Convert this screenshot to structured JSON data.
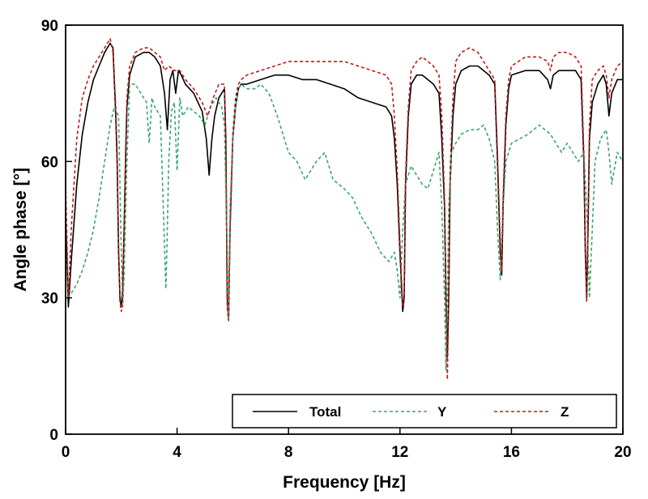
{
  "chart_data": {
    "type": "line",
    "title": "",
    "xlabel": "Frequency [Hz]",
    "ylabel": "Angle phase [°]",
    "xlim": [
      0,
      20
    ],
    "ylim": [
      0,
      90
    ],
    "xticks": [
      0,
      4,
      8,
      12,
      16,
      20
    ],
    "yticks": [
      0,
      30,
      60,
      90
    ],
    "grid": false,
    "legend_position": "bottom-right",
    "series": [
      {
        "name": "Total",
        "color": "#000000",
        "style": "solid",
        "x": [
          0.0,
          0.1,
          0.2,
          0.4,
          0.6,
          0.8,
          1.0,
          1.2,
          1.4,
          1.6,
          1.7,
          1.8,
          1.85,
          1.9,
          1.95,
          2.0,
          2.05,
          2.1,
          2.15,
          2.2,
          2.3,
          2.5,
          2.8,
          3.0,
          3.2,
          3.4,
          3.55,
          3.65,
          3.75,
          3.85,
          3.95,
          4.05,
          4.15,
          4.3,
          4.6,
          4.9,
          5.05,
          5.15,
          5.25,
          5.35,
          5.5,
          5.7,
          5.75,
          5.8,
          5.85,
          5.9,
          6.0,
          6.1,
          6.2,
          6.3,
          6.5,
          7.0,
          7.5,
          8.0,
          8.5,
          9.0,
          9.5,
          10.0,
          10.5,
          11.0,
          11.5,
          11.7,
          11.8,
          11.9,
          12.0,
          12.1,
          12.15,
          12.2,
          12.3,
          12.4,
          12.6,
          12.8,
          13.0,
          13.2,
          13.4,
          13.5,
          13.6,
          13.65,
          13.7,
          13.75,
          13.8,
          13.9,
          14.0,
          14.2,
          14.5,
          14.8,
          15.0,
          15.2,
          15.4,
          15.5,
          15.6,
          15.65,
          15.7,
          15.8,
          15.9,
          16.0,
          16.5,
          17.0,
          17.3,
          17.4,
          17.5,
          17.7,
          18.0,
          18.3,
          18.5,
          18.6,
          18.65,
          18.7,
          18.75,
          18.8,
          18.9,
          19.1,
          19.3,
          19.4,
          19.5,
          19.6,
          19.8,
          20.0
        ],
        "values": [
          48,
          28,
          38,
          55,
          66,
          73,
          78,
          81,
          84,
          86,
          85,
          70,
          60,
          40,
          30,
          28,
          32,
          45,
          60,
          72,
          79,
          83,
          84,
          84,
          83,
          81,
          75,
          67,
          78,
          80,
          75,
          80,
          79,
          77,
          75,
          71,
          65,
          57,
          65,
          70,
          74,
          76,
          65,
          30,
          25,
          45,
          65,
          72,
          76,
          77,
          77,
          78,
          79,
          79,
          78,
          78,
          77,
          76,
          74,
          73,
          72,
          70,
          65,
          55,
          40,
          27,
          30,
          55,
          70,
          77,
          79,
          79,
          78,
          77,
          75,
          65,
          50,
          30,
          17,
          30,
          55,
          70,
          77,
          80,
          81,
          81,
          80,
          79,
          77,
          60,
          40,
          35,
          50,
          68,
          76,
          79,
          80,
          80,
          78,
          76,
          79,
          80,
          80,
          80,
          78,
          60,
          40,
          30,
          45,
          65,
          73,
          77,
          79,
          77,
          70,
          75,
          78,
          78
        ]
      },
      {
        "name": "Y",
        "color": "#3aa66e",
        "style": "dashed",
        "x": [
          0.0,
          0.1,
          0.2,
          0.4,
          0.6,
          0.8,
          1.0,
          1.2,
          1.4,
          1.6,
          1.75,
          1.9,
          2.0,
          2.05,
          2.1,
          2.2,
          2.3,
          2.5,
          2.7,
          2.9,
          3.0,
          3.1,
          3.2,
          3.4,
          3.6,
          3.65,
          3.7,
          3.8,
          3.9,
          4.0,
          4.1,
          4.2,
          4.4,
          4.6,
          4.8,
          5.0,
          5.2,
          5.4,
          5.6,
          5.7,
          5.8,
          5.85,
          5.9,
          6.0,
          6.1,
          6.2,
          6.3,
          6.5,
          6.8,
          7.0,
          7.3,
          7.6,
          8.0,
          8.3,
          8.6,
          9.0,
          9.3,
          9.6,
          10.0,
          10.3,
          10.6,
          11.0,
          11.3,
          11.6,
          11.8,
          11.9,
          12.0,
          12.1,
          12.2,
          12.4,
          12.6,
          12.8,
          13.0,
          13.2,
          13.4,
          13.5,
          13.6,
          13.65,
          13.7,
          13.75,
          13.85,
          14.0,
          14.2,
          14.5,
          14.8,
          15.0,
          15.2,
          15.4,
          15.5,
          15.6,
          15.7,
          15.8,
          16.0,
          16.3,
          16.6,
          17.0,
          17.4,
          17.8,
          18.0,
          18.2,
          18.4,
          18.6,
          18.7,
          18.8,
          18.9,
          19.0,
          19.2,
          19.4,
          19.5,
          19.6,
          19.8,
          20.0
        ],
        "values": [
          40,
          30,
          31,
          33,
          36,
          40,
          45,
          52,
          60,
          68,
          72,
          70,
          40,
          28,
          35,
          60,
          77,
          77,
          75,
          73,
          64,
          74,
          72,
          70,
          32,
          45,
          60,
          71,
          73,
          58,
          74,
          70,
          72,
          71,
          70,
          68,
          72,
          74,
          72,
          68,
          40,
          25,
          50,
          65,
          72,
          76,
          77,
          76,
          76,
          77,
          75,
          70,
          62,
          60,
          56,
          60,
          62,
          56,
          54,
          52,
          48,
          44,
          40,
          38,
          40,
          36,
          30,
          45,
          55,
          59,
          57,
          55,
          54,
          58,
          62,
          50,
          30,
          14,
          30,
          50,
          62,
          64,
          66,
          67,
          67,
          68,
          65,
          60,
          45,
          34,
          50,
          60,
          64,
          65,
          66,
          68,
          66,
          62,
          64,
          62,
          60,
          62,
          50,
          30,
          45,
          60,
          65,
          67,
          62,
          55,
          62,
          60
        ]
      },
      {
        "name": "Z",
        "color": "#c01a1a",
        "style": "dashed",
        "x": [
          0.0,
          0.1,
          0.2,
          0.4,
          0.6,
          0.8,
          1.0,
          1.2,
          1.4,
          1.6,
          1.7,
          1.8,
          1.85,
          1.9,
          1.95,
          2.0,
          2.05,
          2.1,
          2.15,
          2.2,
          2.3,
          2.5,
          2.8,
          3.0,
          3.2,
          3.4,
          3.55,
          3.7,
          3.9,
          4.1,
          4.3,
          4.6,
          4.9,
          5.1,
          5.3,
          5.5,
          5.7,
          5.75,
          5.8,
          5.85,
          5.9,
          6.0,
          6.1,
          6.2,
          6.3,
          6.5,
          7.0,
          7.5,
          8.0,
          8.5,
          9.0,
          9.5,
          10.0,
          10.5,
          11.0,
          11.5,
          11.7,
          11.8,
          11.9,
          12.0,
          12.1,
          12.15,
          12.2,
          12.3,
          12.4,
          12.6,
          12.8,
          13.0,
          13.2,
          13.4,
          13.5,
          13.6,
          13.65,
          13.7,
          13.75,
          13.8,
          13.9,
          14.0,
          14.2,
          14.5,
          14.8,
          15.0,
          15.2,
          15.4,
          15.5,
          15.6,
          15.65,
          15.7,
          15.8,
          15.9,
          16.0,
          16.5,
          17.0,
          17.3,
          17.4,
          17.5,
          17.7,
          18.0,
          18.3,
          18.5,
          18.6,
          18.65,
          18.7,
          18.75,
          18.8,
          18.9,
          19.1,
          19.3,
          19.4,
          19.5,
          19.6,
          19.8,
          20.0
        ],
        "values": [
          55,
          30,
          45,
          65,
          74,
          78,
          81,
          83,
          85,
          87,
          84,
          72,
          62,
          42,
          29,
          27,
          30,
          45,
          62,
          74,
          81,
          84,
          85,
          85,
          84,
          83,
          80,
          81,
          80,
          80,
          78,
          76,
          73,
          70,
          74,
          77,
          77,
          64,
          28,
          25,
          45,
          66,
          74,
          77,
          78,
          79,
          80,
          81,
          82,
          82,
          82,
          82,
          82,
          81,
          80,
          79,
          77,
          70,
          58,
          42,
          28,
          31,
          57,
          72,
          80,
          82,
          83,
          82,
          81,
          79,
          70,
          52,
          30,
          12,
          30,
          58,
          74,
          82,
          84,
          85,
          84,
          82,
          80,
          78,
          62,
          42,
          36,
          52,
          70,
          78,
          81,
          83,
          83,
          82,
          80,
          83,
          84,
          84,
          83,
          81,
          62,
          42,
          29,
          47,
          68,
          78,
          80,
          81,
          79,
          74,
          78,
          81,
          82
        ]
      }
    ]
  }
}
